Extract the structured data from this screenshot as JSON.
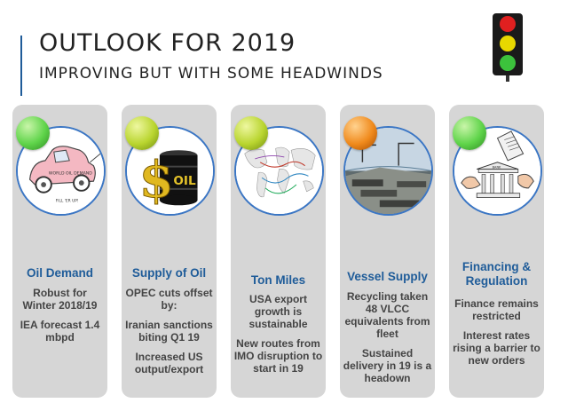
{
  "header": {
    "title": "OUTLOOK FOR 2019",
    "subtitle": "IMPROVING BUT WITH SOME HEADWINDS",
    "traffic_light_colors": [
      "#e02020",
      "#e8d800",
      "#3cc23c"
    ]
  },
  "cards": [
    {
      "title": "Oil Demand",
      "status": "green",
      "light_color": "#5fd44a",
      "illustration": "car-icon",
      "illustration_text": [
        "WORLD OIL DEMAND",
        "FILL 'ER UP!"
      ],
      "body": [
        "Robust for Winter 2018/19",
        "IEA forecast 1.4 mbpd"
      ]
    },
    {
      "title": "Supply of Oil",
      "status": "yellow-green",
      "light_color": "#b9d52f",
      "illustration": "oil-barrel-icon",
      "illustration_text": [
        "$",
        "OIL"
      ],
      "body": [
        "OPEC cuts offset by:",
        "Iranian sanctions biting Q1 19",
        "Increased US output/export"
      ]
    },
    {
      "title": "Ton Miles",
      "status": "yellow-green",
      "light_color": "#b9d52f",
      "illustration": "world-map-icon",
      "illustration_text": [],
      "body": [
        "USA export growth is sustainable",
        "New routes from IMO disruption to start in 19"
      ]
    },
    {
      "title": "Vessel Supply",
      "status": "orange",
      "light_color": "#f08a1c",
      "illustration": "shipyard-icon",
      "illustration_text": [],
      "body": [
        "Recycling taken 48 VLCC equivalents from fleet",
        "Sustained delivery in 19 is a headown"
      ]
    },
    {
      "title": "Financing & Regulation",
      "status": "green",
      "light_color": "#5fd44a",
      "illustration": "bank-icon",
      "illustration_text": [
        "BANK"
      ],
      "body": [
        "Finance remains restricted",
        "Interest rates rising a barrier to new orders"
      ]
    }
  ]
}
